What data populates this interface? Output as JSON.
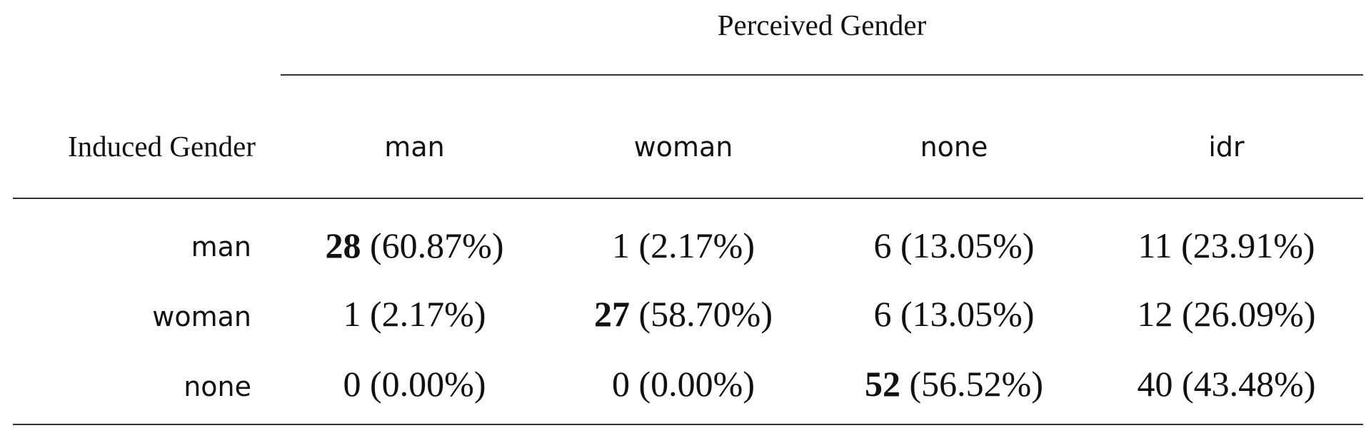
{
  "table": {
    "column_group_header": "Perceived Gender",
    "row_header_title": "Induced Gender",
    "columns": [
      "man",
      "woman",
      "none",
      "idr"
    ],
    "rows": [
      {
        "label": "man",
        "cells": [
          {
            "count": "28",
            "percent": "(60.87%)",
            "bold": true
          },
          {
            "count": "1",
            "percent": "(2.17%)",
            "bold": false
          },
          {
            "count": "6",
            "percent": "(13.05%)",
            "bold": false
          },
          {
            "count": "11",
            "percent": "(23.91%)",
            "bold": false
          }
        ]
      },
      {
        "label": "woman",
        "cells": [
          {
            "count": "1",
            "percent": "(2.17%)",
            "bold": false
          },
          {
            "count": "27",
            "percent": "(58.70%)",
            "bold": true
          },
          {
            "count": "6",
            "percent": "(13.05%)",
            "bold": false
          },
          {
            "count": "12",
            "percent": "(26.09%)",
            "bold": false
          }
        ]
      },
      {
        "label": "none",
        "cells": [
          {
            "count": "0",
            "percent": "(0.00%)",
            "bold": false
          },
          {
            "count": "0",
            "percent": "(0.00%)",
            "bold": false
          },
          {
            "count": "52",
            "percent": "(56.52%)",
            "bold": true
          },
          {
            "count": "40",
            "percent": "(43.48%)",
            "bold": false
          }
        ]
      }
    ]
  }
}
